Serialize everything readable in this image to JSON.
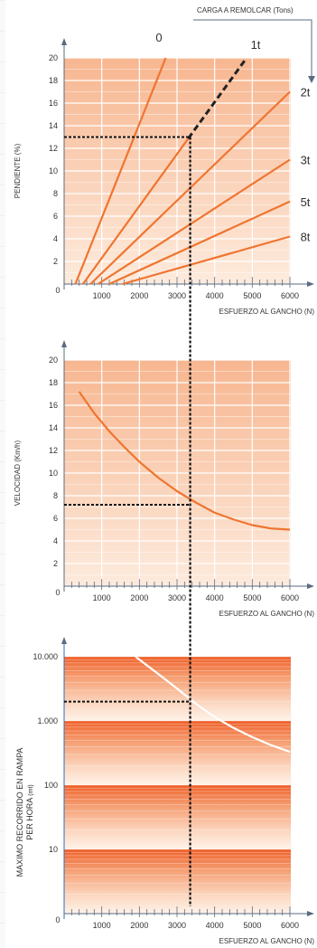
{
  "top_label": "CARGA A REMOLCAR (Tons)",
  "colors": {
    "grid_light": "#fde7d6",
    "grid_dark": "#f6b48e",
    "curve": "#ef7530",
    "axis": "#5a6b82",
    "guide": "#111111",
    "band_dark": "#f0602a",
    "band_light": "#fff1e6",
    "white_curve": "#ffffff"
  },
  "chart_data": [
    {
      "type": "line",
      "name": "pendiente",
      "xlabel": "ESFUERZO AL GANCHO (N)",
      "ylabel": "PENDIENTE (%)",
      "xlim": [
        0,
        6000
      ],
      "ylim": [
        0,
        20
      ],
      "xticks": [
        1000,
        2000,
        3000,
        4000,
        5000,
        6000
      ],
      "yticks": [
        2,
        4,
        6,
        8,
        10,
        12,
        14,
        16,
        18,
        20
      ],
      "x_origin_label": "0",
      "series": [
        {
          "name": "0",
          "x": [
            300,
            2700
          ],
          "y": [
            0,
            20
          ],
          "dashed_from_x": null
        },
        {
          "name": "1t",
          "x": [
            500,
            4850
          ],
          "y": [
            0,
            20
          ],
          "dashed_from_x": 3300
        },
        {
          "name": "2t",
          "x": [
            700,
            6000
          ],
          "y": [
            0,
            17
          ]
        },
        {
          "name": "3t",
          "x": [
            900,
            6000
          ],
          "y": [
            0,
            11
          ]
        },
        {
          "name": "5t",
          "x": [
            1200,
            6000
          ],
          "y": [
            0,
            7.3
          ]
        },
        {
          "name": "8t",
          "x": [
            1550,
            6000
          ],
          "y": [
            0,
            4.2
          ]
        }
      ],
      "reading": {
        "x": 3350,
        "y": 13
      }
    },
    {
      "type": "line",
      "name": "velocidad",
      "xlabel": "ESFUERZO AL GANCHO (N)",
      "ylabel": "VELOCIDAD (Km/h)",
      "xlim": [
        0,
        6000
      ],
      "ylim": [
        0,
        20
      ],
      "xticks": [
        1000,
        2000,
        3000,
        4000,
        5000,
        6000
      ],
      "yticks": [
        2,
        4,
        6,
        8,
        10,
        12,
        14,
        16,
        18,
        20
      ],
      "x_origin_label": "0",
      "series": [
        {
          "name": "",
          "x": [
            400,
            800,
            1200,
            1600,
            2000,
            2500,
            3000,
            3500,
            4000,
            4500,
            5000,
            5500,
            6000
          ],
          "y": [
            17.2,
            15.3,
            13.7,
            12.3,
            11.0,
            9.6,
            8.4,
            7.4,
            6.5,
            5.9,
            5.4,
            5.1,
            5.0
          ]
        }
      ],
      "reading": {
        "x": 3350,
        "y": 7.2
      }
    },
    {
      "type": "line",
      "name": "recorrido",
      "xlabel": "ESFUERZO AL GANCHO (N)",
      "ylabel": "MAXIMO RECORRIDO EN RAMPA PER HORA (mt)",
      "xlim": [
        0,
        6000
      ],
      "ylim": [
        1,
        10000
      ],
      "yscale": "log",
      "xticks": [
        1000,
        2000,
        3000,
        4000,
        5000,
        6000
      ],
      "yticks": [
        10,
        100,
        1000,
        10000
      ],
      "ytick_labels": [
        "10",
        "100",
        "1.000",
        "10.000"
      ],
      "x_origin_label": "0",
      "series": [
        {
          "name": "",
          "x": [
            1900,
            2500,
            3000,
            3500,
            4000,
            4500,
            5000,
            5500,
            6000
          ],
          "y": [
            10000,
            5400,
            3200,
            1850,
            1150,
            780,
            560,
            420,
            330
          ]
        }
      ],
      "reading": {
        "x": 3350,
        "y": 2000
      }
    }
  ]
}
